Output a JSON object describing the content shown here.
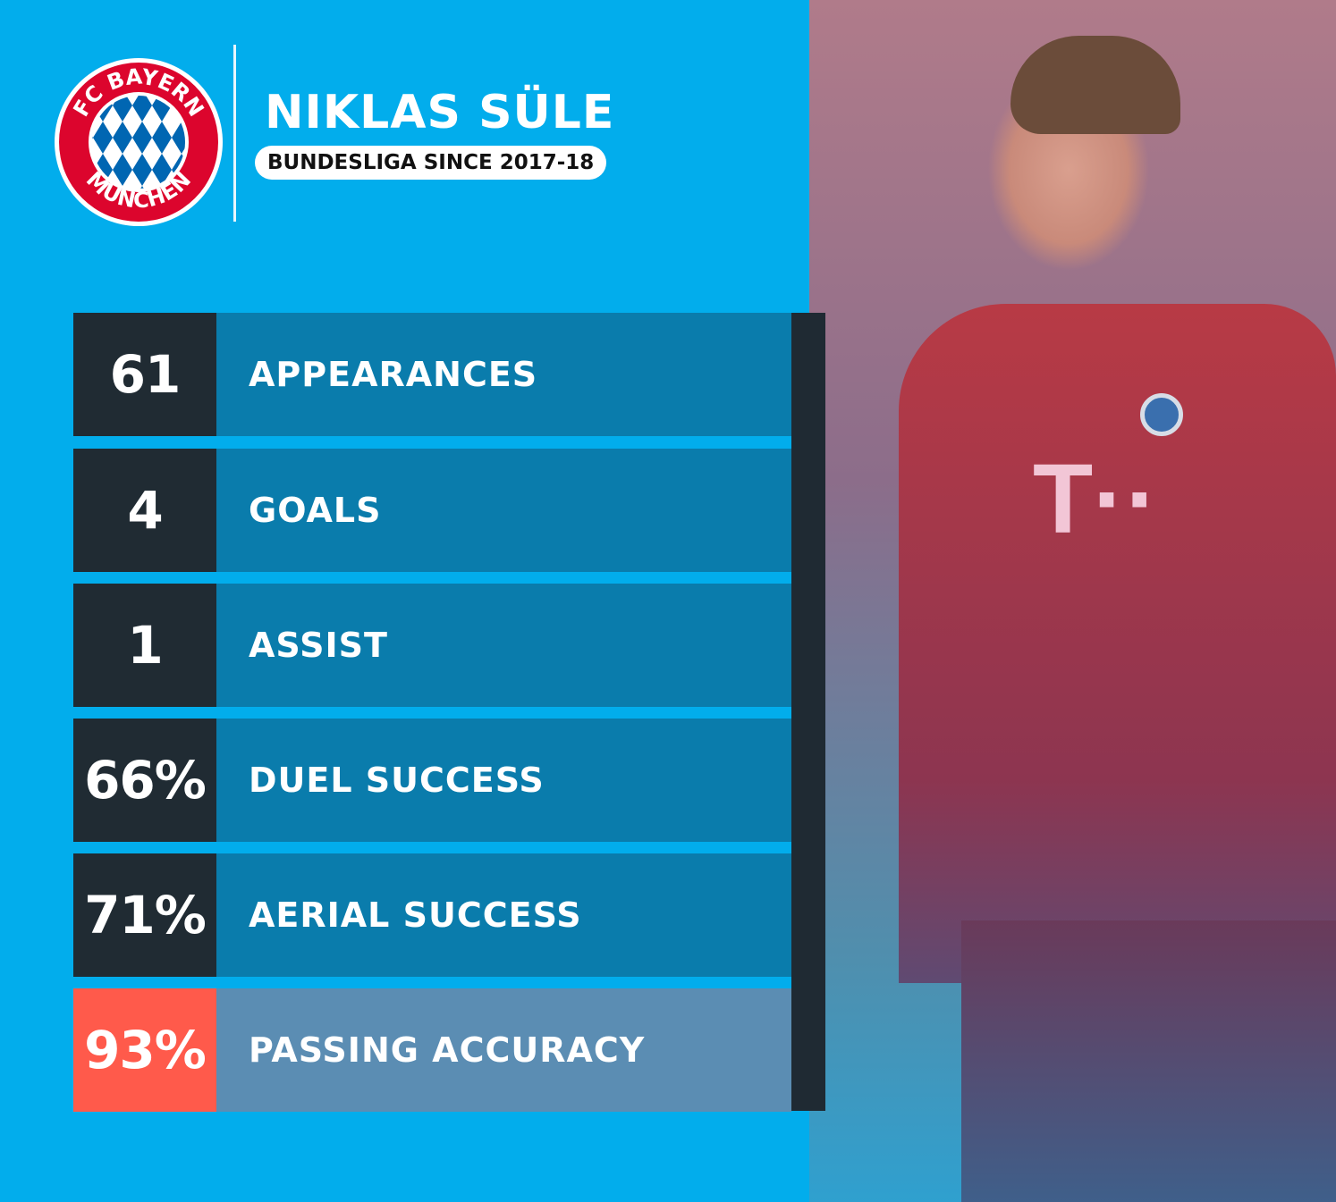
{
  "header": {
    "club_logo_text": "FC BAYERN MÜNCHEN",
    "player_name": "NIKLAS SÜLE",
    "subtitle": "BUNDESLIGA SINCE 2017-18"
  },
  "stats": [
    {
      "value": "61",
      "label": "APPEARANCES"
    },
    {
      "value": "4",
      "label": "GOALS"
    },
    {
      "value": "1",
      "label": "ASSIST"
    },
    {
      "value": "66%",
      "label": "DUEL SUCCESS"
    },
    {
      "value": "71%",
      "label": "AERIAL SUCCESS"
    },
    {
      "value": "93%",
      "label": "PASSING ACCURACY",
      "highlight": true
    }
  ],
  "colors": {
    "background": "#02adec",
    "number_box": "#202b33",
    "label_box": "#0a7cac",
    "highlight_number": "#ff5a4b",
    "highlight_label": "#5b8db3"
  }
}
